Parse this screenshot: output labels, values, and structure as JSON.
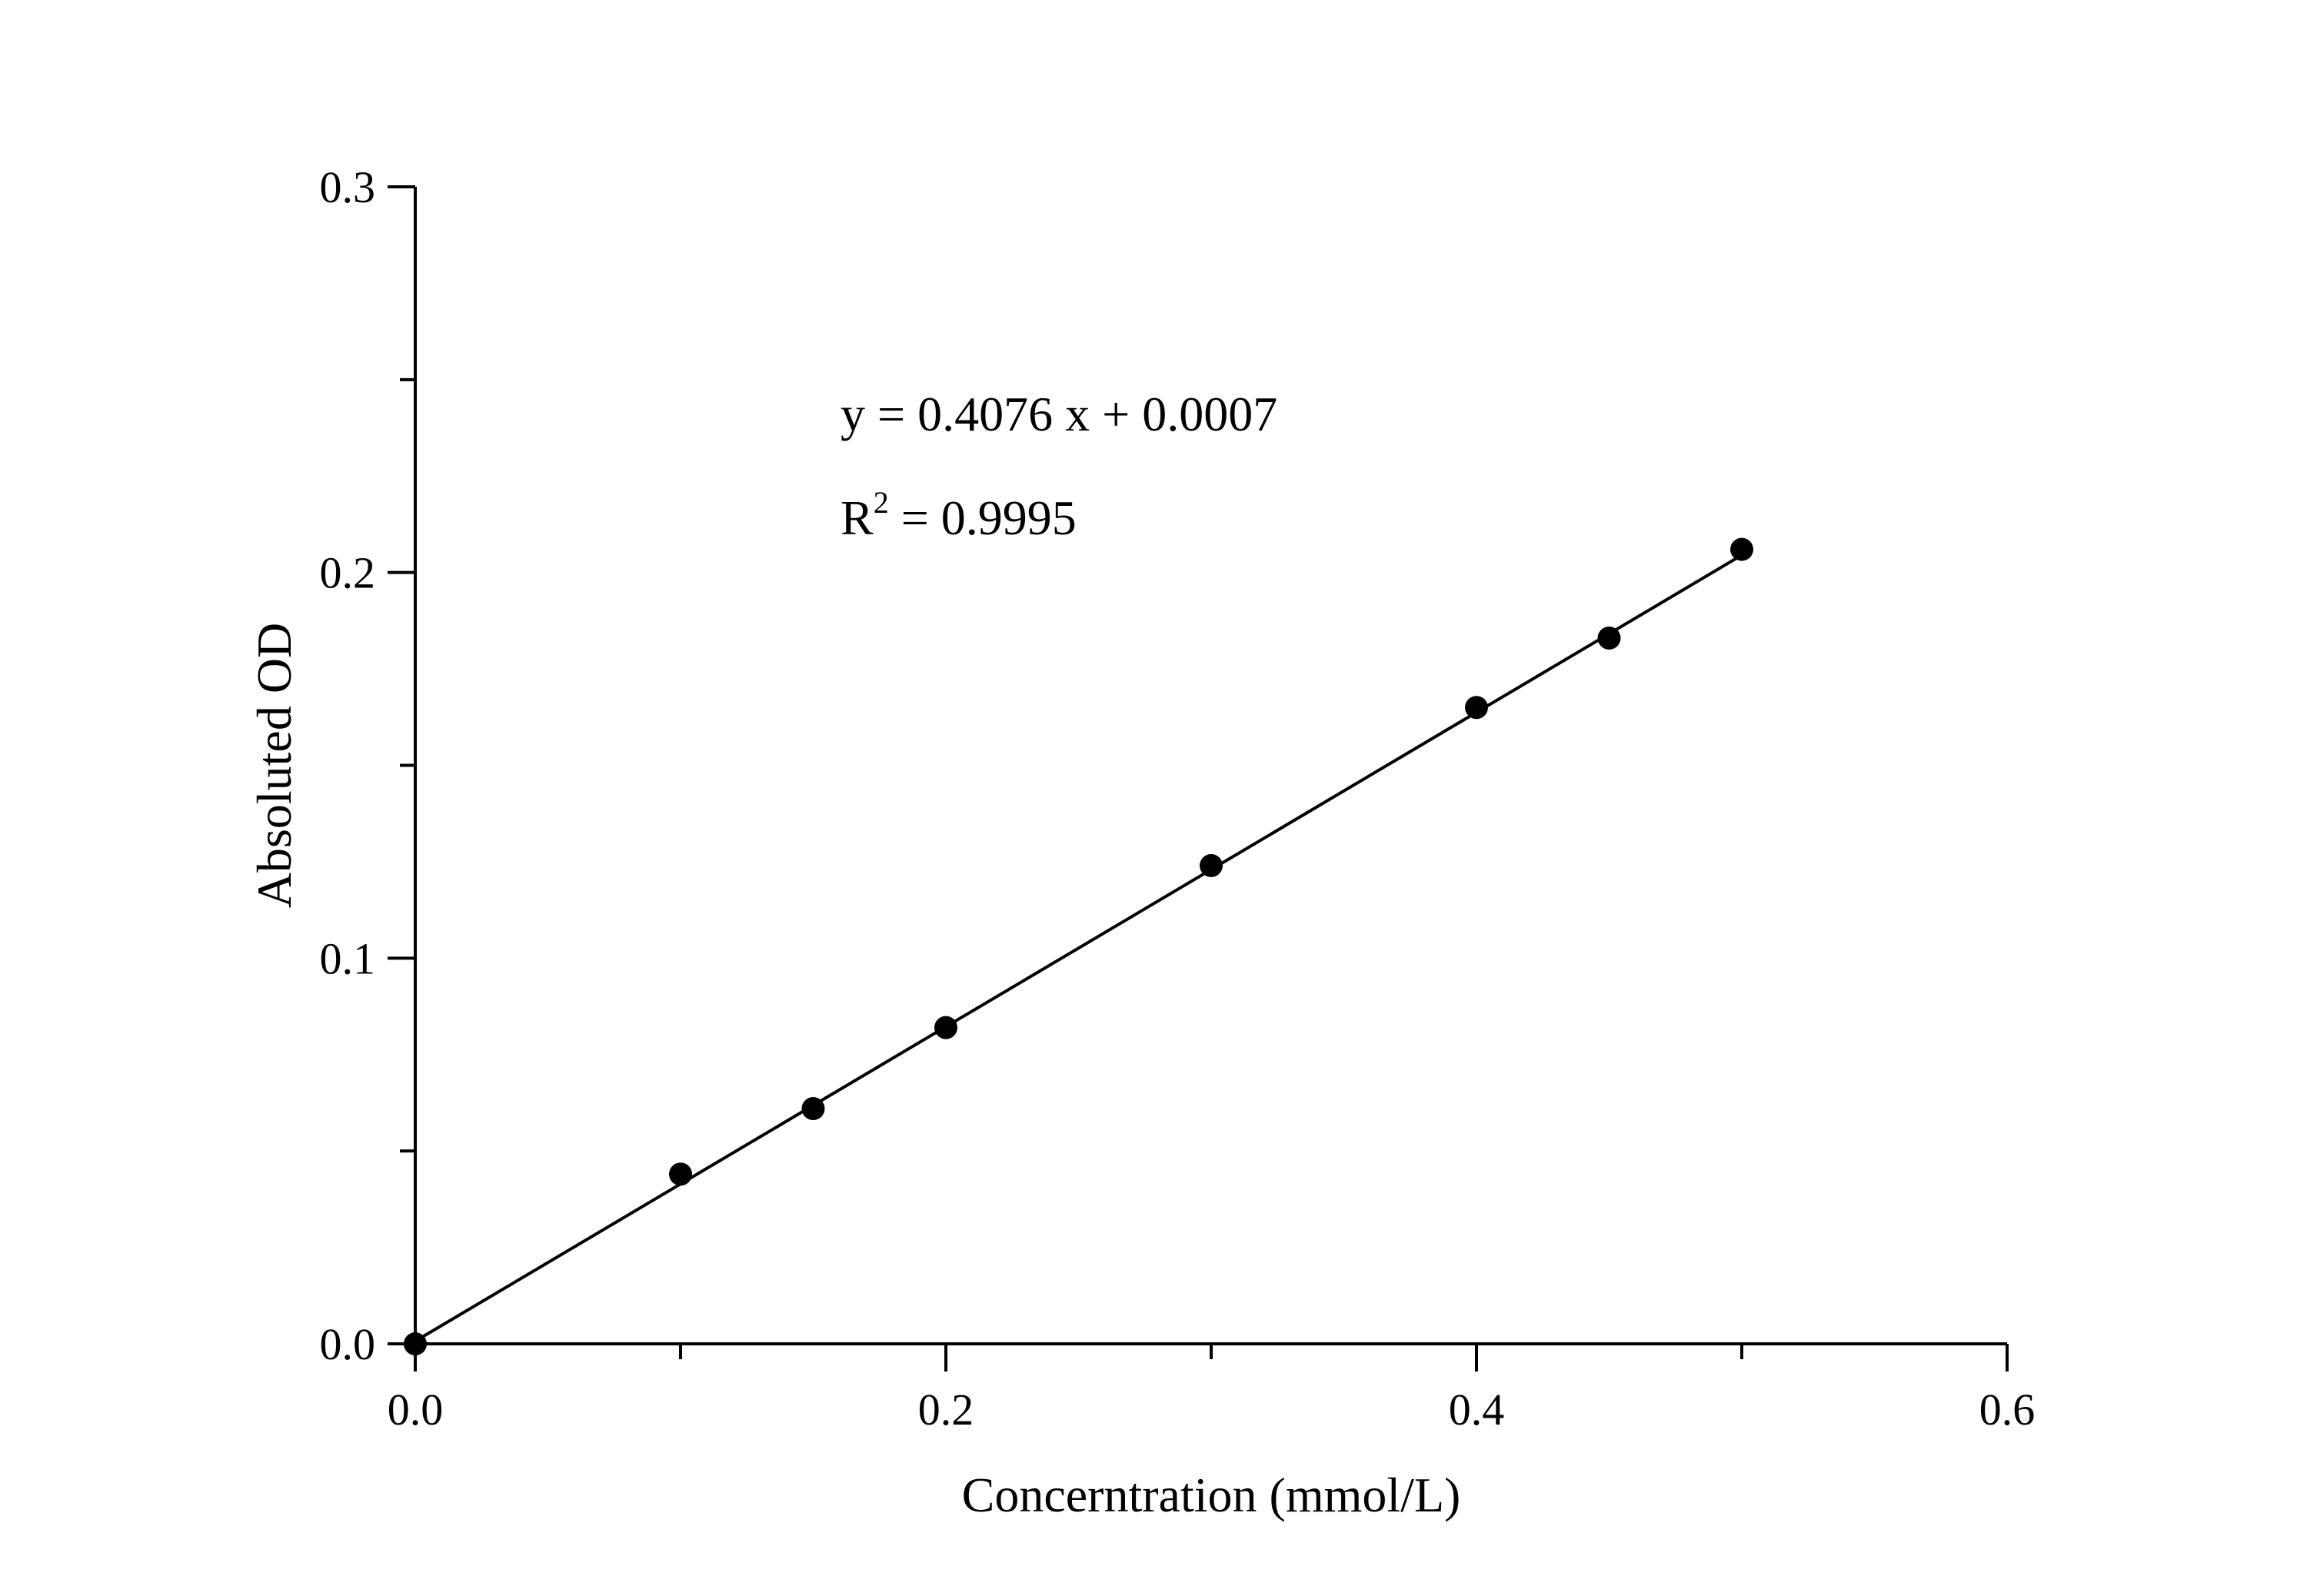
{
  "chart_data": {
    "type": "scatter",
    "xlabel": "Concerntration (mmol/L)",
    "ylabel": "Absoluted OD",
    "xlim": [
      0,
      0.6
    ],
    "ylim": [
      0,
      0.3
    ],
    "x_ticks": [
      "0.0",
      "0.2",
      "0.4",
      "0.6"
    ],
    "y_ticks": [
      "0.0",
      "0.1",
      "0.2",
      "0.3"
    ],
    "x_minor_ticks": [
      0.1,
      0.3,
      0.5
    ],
    "y_minor_ticks": [
      0.05,
      0.15,
      0.25
    ],
    "grid": false,
    "series": [
      {
        "x": [
          0.0,
          0.1,
          0.15,
          0.2,
          0.3,
          0.4,
          0.45,
          0.5
        ],
        "y": [
          0.0,
          0.044,
          0.061,
          0.082,
          0.124,
          0.165,
          0.183,
          0.206
        ],
        "color": "#000000"
      }
    ],
    "fit_line": {
      "slope": 0.4076,
      "intercept": 0.0007,
      "x_range": [
        0,
        0.5
      ]
    },
    "annotations": {
      "equation": "y = 0.4076 x + 0.0007",
      "r2_prefix": "R",
      "r2_sup": "2",
      "r2_value": " = 0.9995"
    }
  }
}
